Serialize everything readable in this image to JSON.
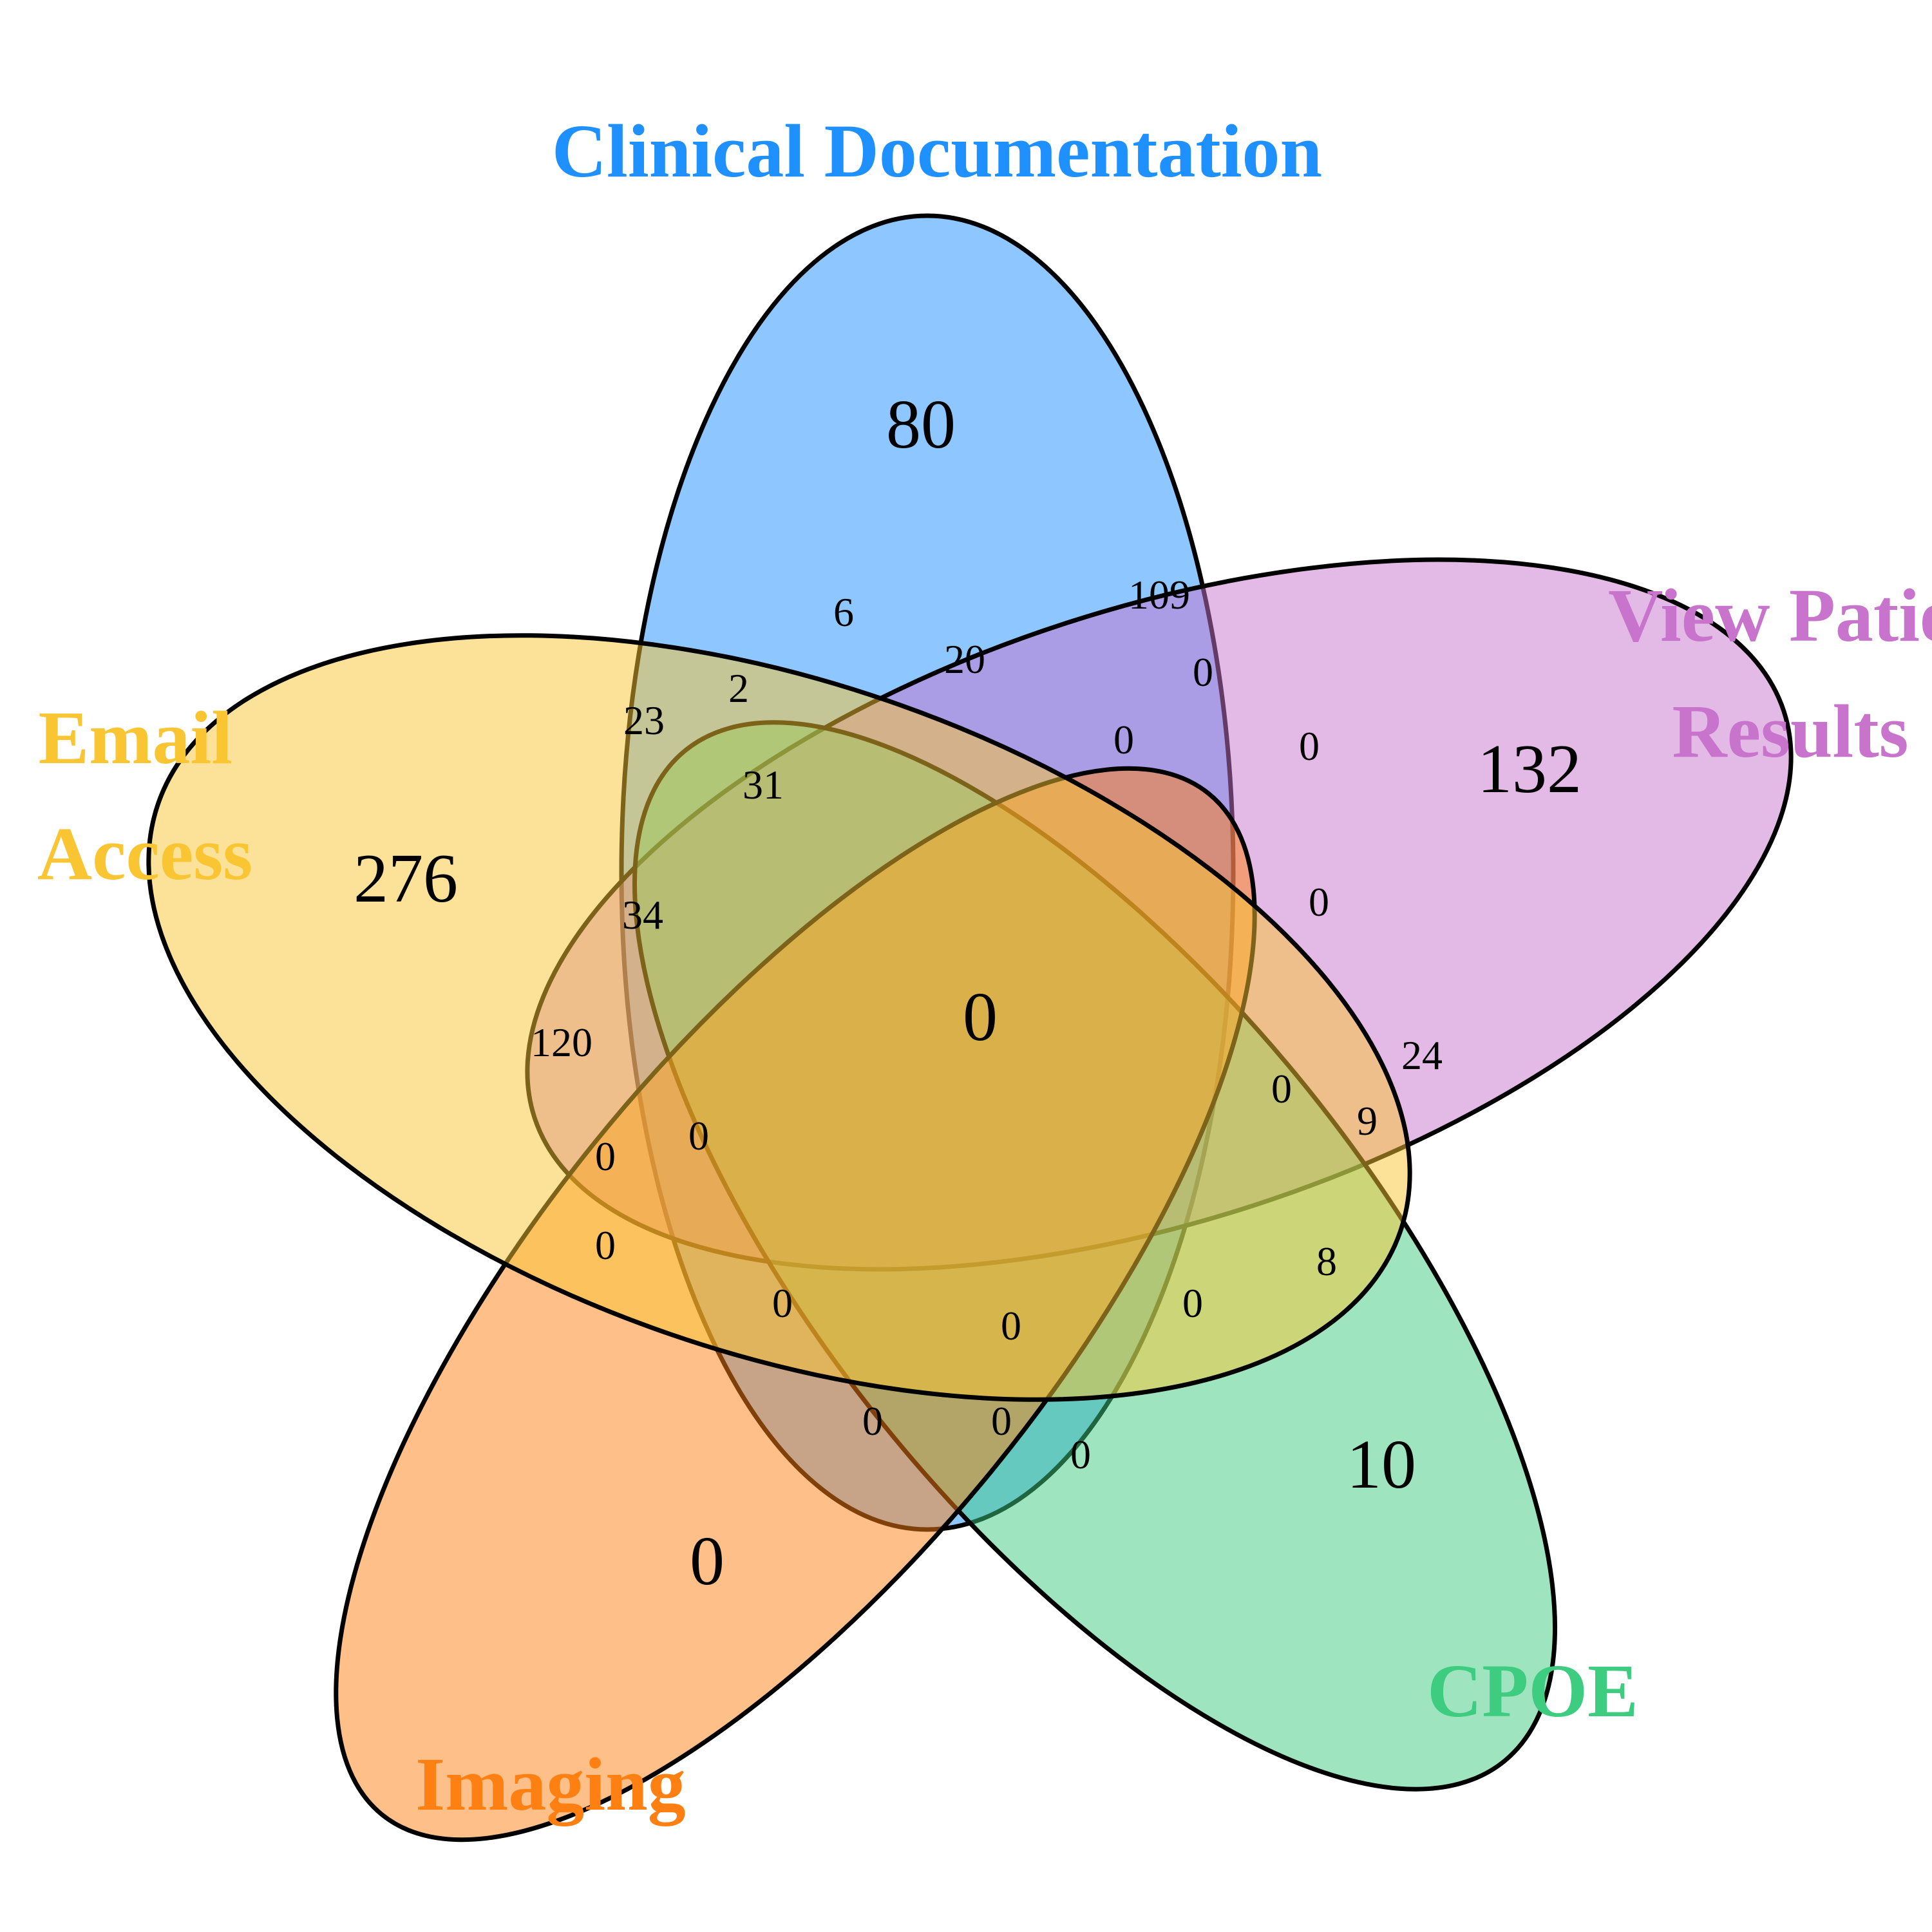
{
  "sets": [
    {
      "key": "clinical",
      "name": "Clinical Documentation",
      "color": "#1E90FF"
    },
    {
      "key": "view",
      "name": "View Patient Results",
      "color": "#C873CC"
    },
    {
      "key": "cpoe",
      "name": "CPOE",
      "color": "#3DCC80"
    },
    {
      "key": "imaging",
      "name": "Imaging",
      "color": "#FF8012"
    },
    {
      "key": "email",
      "name": "Email Access",
      "color": "#FAC532"
    }
  ],
  "labels": {
    "clinical": [
      "Clinical Documentation"
    ],
    "view": [
      "View Patie",
      "Results"
    ],
    "cpoe": [
      "CPOE"
    ],
    "imaging": [
      "Imaging"
    ],
    "email": [
      "Email",
      "Access"
    ]
  },
  "regions": {
    "clinical_only": "80",
    "view_only": "132",
    "cpoe_only": "10",
    "imaging_only": "0",
    "email_only": "276",
    "all_five": "0",
    "r_6": "6",
    "r_109": "109",
    "r_20": "20",
    "r_2": "2",
    "r_23": "23",
    "r_31": "31",
    "r_34": "34",
    "r_120": "120",
    "r_24": "24",
    "r_9": "9",
    "r_8": "8",
    "r_0a": "0",
    "r_0b": "0",
    "r_0c": "0",
    "r_0d": "0",
    "r_0e": "0",
    "r_0f": "0",
    "r_0g": "0",
    "r_0h": "0",
    "r_0i": "0",
    "r_0j": "0",
    "r_0k": "0",
    "r_0l": "0",
    "r_0m": "0",
    "r_0n": "0",
    "r_0o": "0"
  }
}
